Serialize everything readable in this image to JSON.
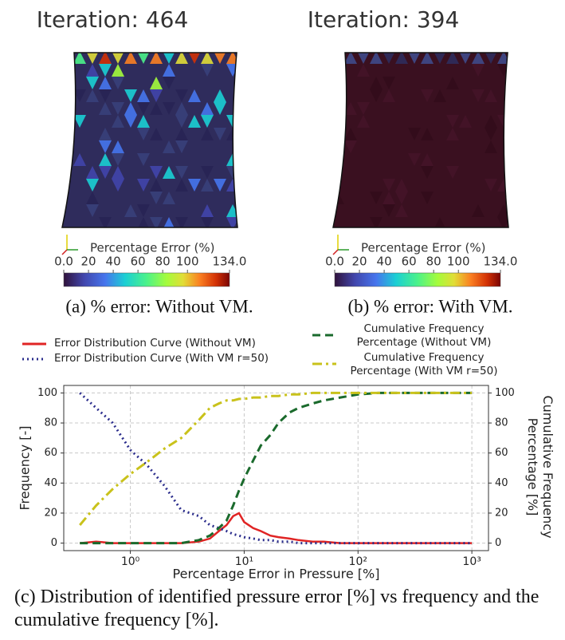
{
  "panels": [
    {
      "title": "Iteration: 464",
      "colorbar_label": "Percentage Error (%)",
      "colorbar_lim": [
        0,
        134
      ],
      "colorbar_ticks": [
        {
          "value": 0,
          "label": "0.0"
        },
        20,
        40,
        60,
        80,
        100,
        {
          "value": 134,
          "label": "134.0"
        }
      ],
      "caption": "(a) % error: Without VM."
    },
    {
      "title": "Iteration: 394",
      "colorbar_label": "Percentage Error (%)",
      "colorbar_lim": [
        0,
        134
      ],
      "colorbar_ticks": [
        {
          "value": 0,
          "label": "0.0"
        },
        20,
        40,
        60,
        80,
        100,
        {
          "value": 134,
          "label": "134.0"
        }
      ],
      "caption": "(b) % error: With VM."
    }
  ],
  "chart_data": {
    "type": "line",
    "xlabel": "Percentage Error in Pressure [%]",
    "ylabel": "Frequency [-]",
    "y2label": "Cumulative Frequency Percentage [%]",
    "xscale": "log",
    "xlim": [
      0.26,
      1400
    ],
    "xticks": [
      {
        "value": 1,
        "label": "10⁰"
      },
      {
        "value": 10,
        "label": "10¹"
      },
      {
        "value": 100,
        "label": "10²"
      },
      {
        "value": 1000,
        "label": "10³"
      }
    ],
    "ylim": [
      -5,
      105
    ],
    "yticks": [
      0,
      20,
      40,
      60,
      80,
      100
    ],
    "y2lim": [
      -5,
      105
    ],
    "y2ticks": [
      0,
      20,
      40,
      60,
      80,
      100
    ],
    "grid": true,
    "x": [
      0.36,
      0.5,
      0.7,
      1,
      1.4,
      2,
      2.8,
      4,
      5,
      6,
      7,
      8,
      9,
      10,
      12,
      14,
      17,
      20,
      25,
      30,
      40,
      50,
      70,
      100,
      150,
      200,
      400,
      1000
    ],
    "series": [
      {
        "name": "Error Distribution Curve (Without VM)",
        "color": "#e02424",
        "linestyle": "solid",
        "axis": "y",
        "values": [
          0,
          1,
          0,
          0,
          0,
          0,
          0,
          1,
          3,
          8,
          12,
          18,
          20,
          14,
          10,
          8,
          5,
          4,
          3,
          2,
          1,
          1,
          0,
          0,
          0,
          0,
          0,
          0
        ]
      },
      {
        "name": "Error Distribution Curve (With VM r=50)",
        "color": "#2b2d8c",
        "linestyle": "dotted",
        "axis": "y",
        "values": [
          100,
          90,
          80,
          62,
          52,
          38,
          22,
          18,
          12,
          10,
          8,
          6,
          5,
          4,
          3,
          2,
          2,
          1,
          1,
          0,
          0,
          0,
          0,
          0,
          0,
          0,
          0,
          0
        ]
      },
      {
        "name": "Cumulative Frequency Percentage (Without VM)",
        "color": "#1a6a2c",
        "linestyle": "dashed",
        "axis": "y2",
        "values": [
          0,
          0,
          0,
          0,
          0,
          0,
          0,
          2,
          5,
          10,
          15,
          25,
          35,
          43,
          55,
          65,
          72,
          80,
          87,
          90,
          93,
          95,
          97,
          99,
          100,
          100,
          100,
          100
        ]
      },
      {
        "name": "Cumulative Frequency Percentage (With VM r=50)",
        "color": "#c9c21b",
        "linestyle": "dashdot",
        "axis": "y2",
        "values": [
          12,
          25,
          36,
          46,
          54,
          63,
          70,
          82,
          90,
          93,
          95,
          95,
          96,
          96,
          97,
          97,
          98,
          98,
          99,
          99,
          100,
          100,
          100,
          100,
          100,
          100,
          100,
          100
        ]
      }
    ]
  },
  "caption": "(c) Distribution of identified pressure error [%] vs frequency and the cumulative frequency [%]."
}
